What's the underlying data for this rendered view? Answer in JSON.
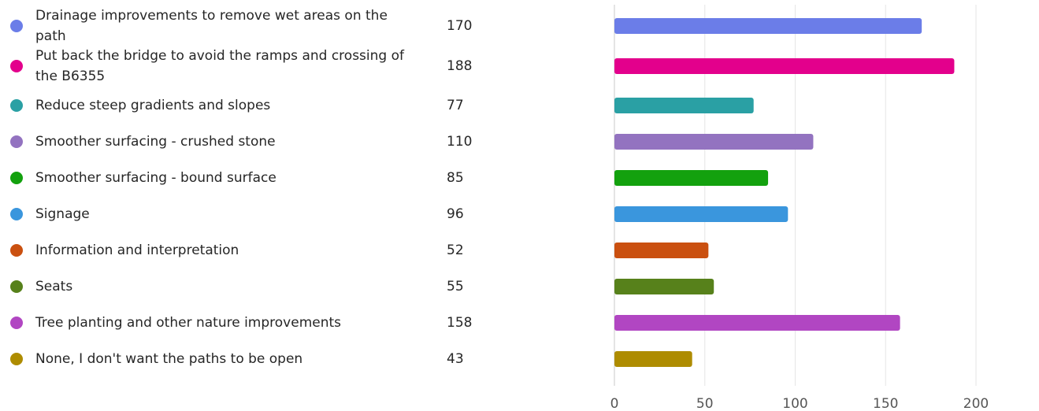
{
  "chart_data": {
    "type": "bar",
    "orientation": "horizontal",
    "categories": [
      "Drainage improvements to remove wet areas on the path",
      "Put back the bridge to avoid the ramps and crossing of the B6355",
      "Reduce steep gradients and slopes",
      "Smoother surfacing - crushed stone",
      "Smoother surfacing - bound surface",
      "Signage",
      "Information and interpretation",
      "Seats",
      "Tree planting and other nature improvements",
      "None, I don't want the paths to be open"
    ],
    "values": [
      170,
      188,
      77,
      110,
      85,
      96,
      52,
      55,
      158,
      43
    ],
    "colors": [
      "#6b7de8",
      "#e3008c",
      "#2aa0a4",
      "#9373c0",
      "#13a10e",
      "#3a96dd",
      "#ca5010",
      "#57811b",
      "#b146c2",
      "#ae8c00"
    ],
    "xlim": [
      0,
      200
    ],
    "xticks": [
      0,
      50,
      100,
      150,
      200
    ],
    "grid": true,
    "legend_position": "left"
  }
}
